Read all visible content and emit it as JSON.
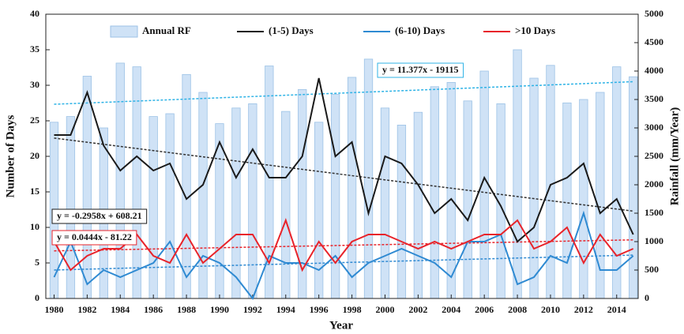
{
  "chart_data": {
    "type": "bar",
    "x_label": "Year",
    "y_label": "Number of Days",
    "y2_label": "Rainfall (mm/Year)",
    "x": [
      1980,
      1981,
      1982,
      1983,
      1984,
      1985,
      1986,
      1987,
      1988,
      1989,
      1990,
      1991,
      1992,
      1993,
      1994,
      1995,
      1996,
      1997,
      1998,
      1999,
      2000,
      2001,
      2002,
      2003,
      2004,
      2005,
      2006,
      2007,
      2008,
      2009,
      2010,
      2011,
      2012,
      2013,
      2014,
      2015
    ],
    "xlim": [
      1979.5,
      2015.3
    ],
    "xticks": [
      1980,
      1982,
      1984,
      1986,
      1988,
      1990,
      1992,
      1994,
      1996,
      1998,
      2000,
      2002,
      2004,
      2006,
      2008,
      2010,
      2012,
      2014
    ],
    "ylim": [
      0,
      40
    ],
    "yticks": [
      0,
      5,
      10,
      15,
      20,
      25,
      30,
      35,
      40
    ],
    "y2lim": [
      0,
      5000
    ],
    "y2ticks": [
      0,
      500,
      1000,
      1500,
      2000,
      2500,
      3000,
      3500,
      4000,
      4500,
      5000
    ],
    "series": [
      {
        "name": "Annual RF",
        "type": "bar",
        "axis": "y2",
        "color": "#cfe2f6",
        "edge_color": "#9cc2e6",
        "trend_color": "#2fb3e6",
        "trendline": true,
        "values": [
          3100,
          3200,
          3910,
          3000,
          4140,
          4075,
          3200,
          3250,
          3940,
          3625,
          3075,
          3350,
          3425,
          4090,
          3290,
          3675,
          3100,
          3590,
          3890,
          4210,
          3350,
          3050,
          3275,
          3725,
          3800,
          3475,
          4000,
          3425,
          4375,
          3875,
          4100,
          3440,
          3500,
          3625,
          4075,
          3900
        ]
      },
      {
        "name": "(1-5) Days",
        "type": "line",
        "color": "#1a1a1a",
        "trend_color": "#333333",
        "trendline": true,
        "values": [
          23,
          23,
          29,
          21.5,
          18,
          20,
          18,
          19,
          14,
          16,
          22,
          17,
          21,
          17,
          17,
          20,
          31,
          20,
          22,
          12,
          20,
          19,
          16,
          12,
          14,
          11,
          17,
          13,
          8,
          10,
          16,
          17,
          19,
          12,
          14,
          9
        ]
      },
      {
        "name": "(6-10) Days",
        "type": "line",
        "color": "#2f8ad2",
        "trend_color": "#2f8ad2",
        "trendline": true,
        "values": [
          3,
          8,
          2,
          4,
          3,
          4,
          5,
          8,
          3,
          6,
          5,
          3,
          0,
          6,
          5,
          5,
          4,
          6,
          3,
          5,
          6,
          7,
          6,
          5,
          3,
          8,
          8,
          9,
          2,
          3,
          6,
          5,
          12,
          4,
          4,
          6
        ]
      },
      {
        "name": ">10 Days",
        "type": "line",
        "color": "#e8232a",
        "trend_color": "#e8232a",
        "trendline": true,
        "values": [
          8,
          4,
          6,
          7,
          7,
          9,
          6,
          5,
          9,
          5,
          7,
          9,
          9,
          5,
          11,
          4,
          8,
          5,
          8,
          9,
          9,
          8,
          7,
          8,
          7,
          8,
          9,
          9,
          11,
          7,
          8,
          10,
          5,
          9,
          6,
          7
        ]
      }
    ],
    "annotations": [
      {
        "text": "y = 11.377x - 19115",
        "color": "#2fb3e6"
      },
      {
        "text": "y = -0.2958x + 608.21",
        "color": "#1a1a1a"
      },
      {
        "text": "y = 0.0444x - 81.22",
        "color": "#e8232a"
      }
    ]
  }
}
